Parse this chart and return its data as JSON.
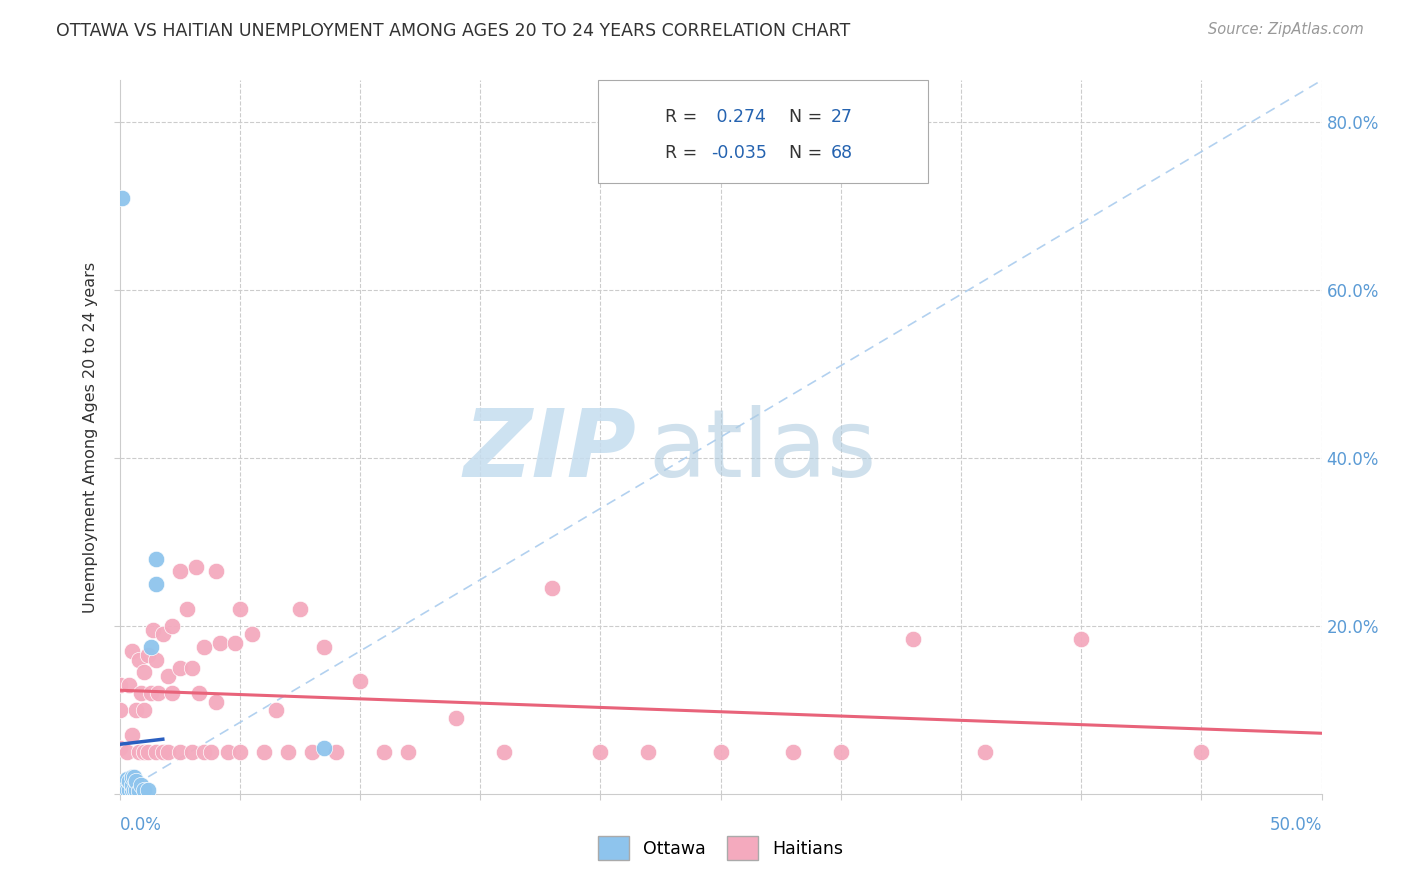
{
  "title": "OTTAWA VS HAITIAN UNEMPLOYMENT AMONG AGES 20 TO 24 YEARS CORRELATION CHART",
  "source": "Source: ZipAtlas.com",
  "ylabel": "Unemployment Among Ages 20 to 24 years",
  "xlim": [
    0.0,
    0.5
  ],
  "ylim": [
    0.0,
    0.85
  ],
  "legend_r_ottawa": "0.274",
  "legend_n_ottawa": "27",
  "legend_r_haitians": "-0.035",
  "legend_n_haitians": "68",
  "ottawa_color": "#8EC4ED",
  "haitian_color": "#F4AABE",
  "ottawa_line_color": "#2B5FC0",
  "haitian_line_color": "#E8637A",
  "diag_line_color": "#AACCEE",
  "ottawa_x": [
    0.0,
    0.0,
    0.001,
    0.001,
    0.002,
    0.002,
    0.002,
    0.003,
    0.003,
    0.004,
    0.004,
    0.005,
    0.005,
    0.005,
    0.006,
    0.006,
    0.007,
    0.007,
    0.008,
    0.009,
    0.01,
    0.012,
    0.013,
    0.015,
    0.015,
    0.085,
    0.001
  ],
  "ottawa_y": [
    0.003,
    0.01,
    0.005,
    0.012,
    0.003,
    0.008,
    0.015,
    0.005,
    0.018,
    0.005,
    0.015,
    0.005,
    0.01,
    0.02,
    0.005,
    0.02,
    0.005,
    0.015,
    0.003,
    0.01,
    0.005,
    0.005,
    0.175,
    0.25,
    0.28,
    0.055,
    0.71
  ],
  "haitian_x": [
    0.0,
    0.0,
    0.0,
    0.003,
    0.004,
    0.005,
    0.005,
    0.007,
    0.008,
    0.008,
    0.009,
    0.01,
    0.01,
    0.01,
    0.012,
    0.012,
    0.013,
    0.014,
    0.015,
    0.015,
    0.016,
    0.018,
    0.018,
    0.02,
    0.02,
    0.022,
    0.022,
    0.025,
    0.025,
    0.025,
    0.028,
    0.03,
    0.03,
    0.032,
    0.033,
    0.035,
    0.035,
    0.038,
    0.04,
    0.04,
    0.042,
    0.045,
    0.048,
    0.05,
    0.05,
    0.055,
    0.06,
    0.065,
    0.07,
    0.075,
    0.08,
    0.085,
    0.09,
    0.1,
    0.11,
    0.12,
    0.14,
    0.16,
    0.18,
    0.2,
    0.22,
    0.25,
    0.28,
    0.3,
    0.33,
    0.36,
    0.4,
    0.45
  ],
  "haitian_y": [
    0.055,
    0.1,
    0.13,
    0.05,
    0.13,
    0.07,
    0.17,
    0.1,
    0.05,
    0.16,
    0.12,
    0.05,
    0.1,
    0.145,
    0.05,
    0.165,
    0.12,
    0.195,
    0.05,
    0.16,
    0.12,
    0.05,
    0.19,
    0.05,
    0.14,
    0.12,
    0.2,
    0.05,
    0.15,
    0.265,
    0.22,
    0.05,
    0.15,
    0.27,
    0.12,
    0.05,
    0.175,
    0.05,
    0.265,
    0.11,
    0.18,
    0.05,
    0.18,
    0.05,
    0.22,
    0.19,
    0.05,
    0.1,
    0.05,
    0.22,
    0.05,
    0.175,
    0.05,
    0.135,
    0.05,
    0.05,
    0.09,
    0.05,
    0.245,
    0.05,
    0.05,
    0.05,
    0.05,
    0.05,
    0.185,
    0.05,
    0.185,
    0.05
  ]
}
